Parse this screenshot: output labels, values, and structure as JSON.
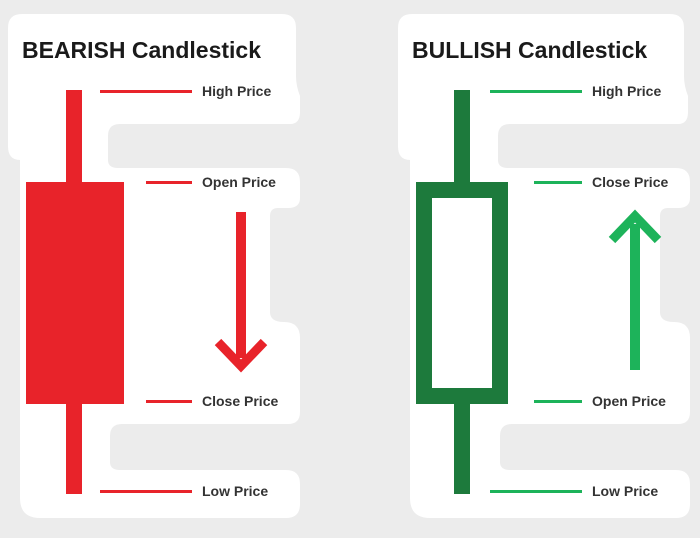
{
  "colors": {
    "bearish": "#e8232a",
    "bullish_dark": "#1d7a3c",
    "bullish_light": "#1db35a",
    "sticker_bg": "#ffffff",
    "page_bg": "#ececec",
    "text": "#333333"
  },
  "bearish": {
    "title": "BEARISH Candlestick",
    "labels": {
      "high": "High Price",
      "open": "Open Price",
      "close": "Close Price",
      "low": "Low Price"
    },
    "arrow_direction": "down"
  },
  "bullish": {
    "title": "BULLISH Candlestick",
    "labels": {
      "high": "High Price",
      "close": "Close Price",
      "open": "Open Price",
      "low": "Low Price"
    },
    "arrow_direction": "up"
  }
}
